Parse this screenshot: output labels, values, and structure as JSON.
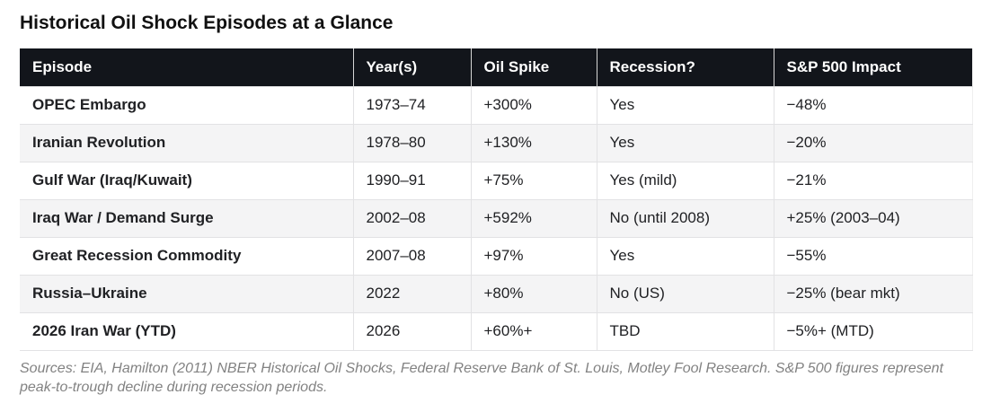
{
  "page": {
    "title": "Historical Oil Shock Episodes at a Glance"
  },
  "colors": {
    "header_bg": "#12151b",
    "header_text": "#ffffff",
    "accent_red": "#b8443a",
    "row_stripe": "#f4f4f5",
    "footer_gray": "#828282"
  },
  "table": {
    "columns": [
      "Episode",
      "Year(s)",
      "Oil Spike",
      "Recession?",
      "S&P 500 Impact"
    ],
    "rows": [
      {
        "episode": "OPEC Embargo",
        "years": "1973–74",
        "oil_spike": "+300%",
        "recession": "Yes",
        "recession_red": true,
        "sp500": "−48%",
        "sp500_red": true
      },
      {
        "episode": "Iranian Revolution",
        "years": "1978–80",
        "oil_spike": "+130%",
        "recession": "Yes",
        "recession_red": true,
        "sp500": "−20%",
        "sp500_red": true
      },
      {
        "episode": "Gulf War (Iraq/Kuwait)",
        "years": "1990–91",
        "oil_spike": "+75%",
        "recession": "Yes (mild)",
        "recession_red": true,
        "sp500": "−21%",
        "sp500_red": true
      },
      {
        "episode": "Iraq War / Demand Surge",
        "years": "2002–08",
        "oil_spike": "+592%",
        "recession": "No (until 2008)",
        "recession_red": false,
        "sp500": "+25% (2003–04)",
        "sp500_red": false
      },
      {
        "episode": "Great Recession Commodity",
        "years": "2007–08",
        "oil_spike": "+97%",
        "recession": "Yes",
        "recession_red": true,
        "sp500": "−55%",
        "sp500_red": true
      },
      {
        "episode": "Russia–Ukraine",
        "years": "2022",
        "oil_spike": "+80%",
        "recession": "No (US)",
        "recession_red": false,
        "sp500": "−25% (bear mkt)",
        "sp500_red": true
      },
      {
        "episode": "2026 Iran War (YTD)",
        "years": "2026",
        "oil_spike": "+60%+",
        "recession": "TBD",
        "recession_red": false,
        "sp500": "−5%+ (MTD)",
        "sp500_red": true
      }
    ]
  },
  "footer": {
    "sources": "Sources: EIA, Hamilton (2011) NBER Historical Oil Shocks, Federal Reserve Bank of St. Louis, Motley Fool Research. S&P 500 figures represent peak-to-trough decline during recession periods."
  },
  "chart_data": {
    "type": "table",
    "title": "Historical Oil Shock Episodes at a Glance",
    "columns": [
      "Episode",
      "Year(s)",
      "Oil Spike",
      "Recession?",
      "S&P 500 Impact"
    ],
    "rows": [
      [
        "OPEC Embargo",
        "1973–74",
        "+300%",
        "Yes",
        "−48%"
      ],
      [
        "Iranian Revolution",
        "1978–80",
        "+130%",
        "Yes",
        "−20%"
      ],
      [
        "Gulf War (Iraq/Kuwait)",
        "1990–91",
        "+75%",
        "Yes (mild)",
        "−21%"
      ],
      [
        "Iraq War / Demand Surge",
        "2002–08",
        "+592%",
        "No (until 2008)",
        "+25% (2003–04)"
      ],
      [
        "Great Recession Commodity",
        "2007–08",
        "+97%",
        "Yes",
        "−55%"
      ],
      [
        "Russia–Ukraine",
        "2022",
        "+80%",
        "No (US)",
        "−25% (bear mkt)"
      ],
      [
        "2026 Iran War (YTD)",
        "2026",
        "+60%+",
        "TBD",
        "−5%+ (MTD)"
      ]
    ]
  }
}
